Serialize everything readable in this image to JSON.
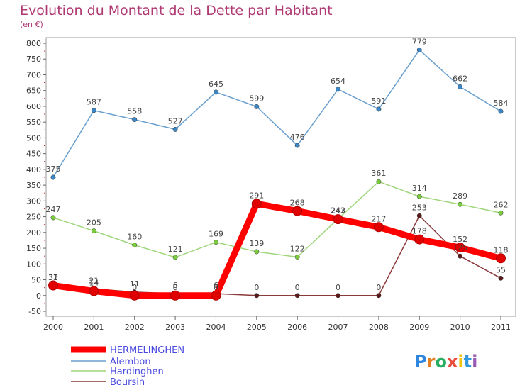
{
  "chart_data": {
    "type": "line",
    "title": "Evolution du Montant de la Dette par Habitant",
    "subtitle": "(en €)",
    "x": [
      "2000",
      "2001",
      "2002",
      "2003",
      "2004",
      "2005",
      "2006",
      "2007",
      "2008",
      "2009",
      "2010",
      "2011"
    ],
    "y_ticks": [
      "800",
      "750",
      "700",
      "650",
      "600",
      "550",
      "500",
      "450",
      "400",
      "350",
      "300",
      "250",
      "200",
      "150",
      "100",
      "50",
      "0",
      "-50"
    ],
    "ylim": [
      -50,
      800
    ],
    "grid": false,
    "legend_position": "bottom-left",
    "series": [
      {
        "name": "HERMELINGHEN",
        "color": "#ff0000",
        "bold": true,
        "values": [
          32,
          14,
          0,
          0,
          0,
          291,
          268,
          242,
          217,
          178,
          152,
          118
        ],
        "labels": [
          "32",
          "14",
          "0",
          "0",
          "0",
          "291",
          "268",
          "242",
          "217",
          "178",
          "152",
          "118"
        ]
      },
      {
        "name": "Alembon",
        "color": "#6a9fcf",
        "marker": "#3b86c6",
        "values": [
          375,
          587,
          558,
          527,
          645,
          599,
          476,
          654,
          591,
          779,
          662,
          584
        ],
        "labels": [
          "375",
          "587",
          "558",
          "527",
          "645",
          "599",
          "476",
          "654",
          "591",
          "779",
          "662",
          "584"
        ]
      },
      {
        "name": "Hardinghen",
        "color": "#9fd67a",
        "marker": "#7acc3d",
        "values": [
          247,
          205,
          160,
          121,
          169,
          139,
          122,
          243,
          361,
          314,
          289,
          262
        ],
        "labels": [
          "247",
          "205",
          "160",
          "121",
          "169",
          "139",
          "122",
          "243",
          "361",
          "314",
          "289",
          "262"
        ]
      },
      {
        "name": "Boursin",
        "color": "#8b3a3a",
        "marker": "#5a1a1a",
        "values": [
          31,
          21,
          11,
          6,
          6,
          0,
          0,
          0,
          0,
          253,
          125,
          55
        ],
        "labels": [
          "31",
          "21",
          "11",
          "6",
          "6",
          "0",
          "0",
          "0",
          "0",
          "253",
          "125",
          "55"
        ]
      }
    ]
  },
  "brand": {
    "text": "Proxiti"
  }
}
